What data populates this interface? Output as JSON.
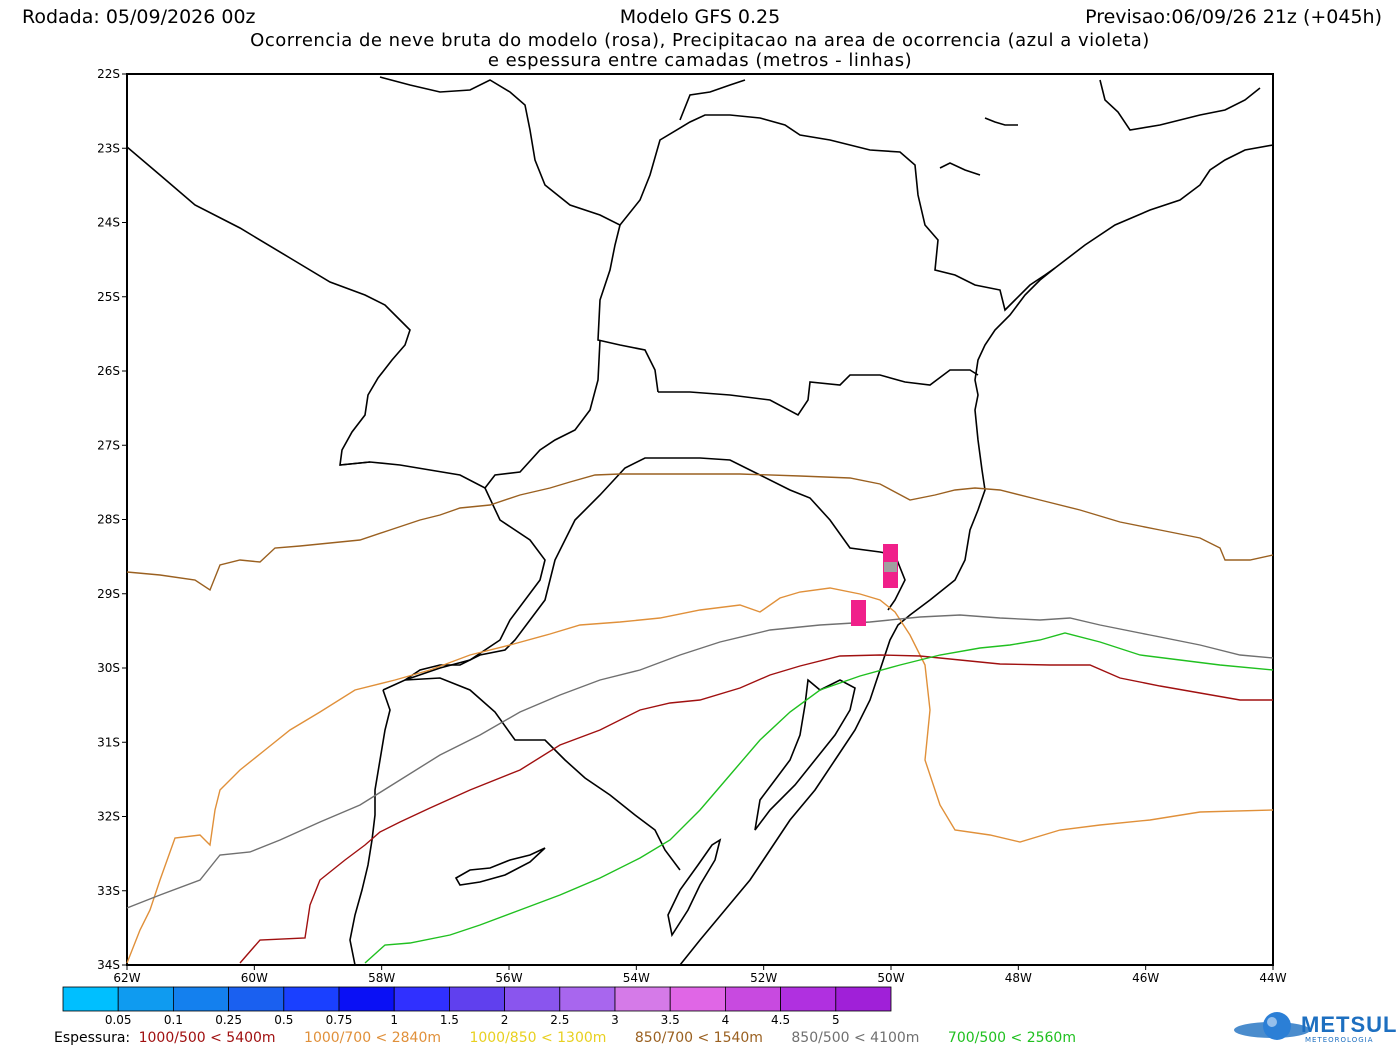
{
  "header": {
    "run": "Rodada: 05/09/2026 00z",
    "model": "Modelo GFS 0.25",
    "forecast": "Previsao:06/09/26 21z (+045h)",
    "subtitle_line1": "Ocorrencia de neve bruta do modelo (rosa), Precipitacao na area de ocorrencia (azul a violeta)",
    "subtitle_line2": "e espessura entre camadas (metros - linhas)"
  },
  "axes": {
    "lat_labels": [
      "22S",
      "23S",
      "24S",
      "25S",
      "26S",
      "27S",
      "28S",
      "29S",
      "30S",
      "31S",
      "32S",
      "33S",
      "34S"
    ],
    "lon_labels": [
      "62W",
      "60W",
      "58W",
      "56W",
      "54W",
      "52W",
      "50W",
      "48W",
      "46W",
      "44W"
    ]
  },
  "colorbar": {
    "colors": [
      "#00bfff",
      "#0f9bf0",
      "#1480ee",
      "#1a60f0",
      "#1a40ff",
      "#0a10f5",
      "#3030ff",
      "#6040ee",
      "#8a55ee",
      "#a866ee",
      "#d57ae8",
      "#e066e6",
      "#c84ae0",
      "#b030e0",
      "#a020d8"
    ],
    "labels": [
      "0.05",
      "0.1",
      "0.25",
      "0.5",
      "0.75",
      "1",
      "1.5",
      "2",
      "2.5",
      "3",
      "3.5",
      "4",
      "4.5",
      "5"
    ]
  },
  "legend": {
    "title": "Espessura:",
    "items": [
      {
        "label": "1000/500 < 5400m",
        "color": "#a01010"
      },
      {
        "label": "1000/700 < 2840m",
        "color": "#e0903a"
      },
      {
        "label": "1000/850 < 1300m",
        "color": "#e8d020"
      },
      {
        "label": "850/700 < 1540m",
        "color": "#9a6020"
      },
      {
        "label": "850/500 < 4100m",
        "color": "#707070"
      },
      {
        "label": "700/500 < 2560m",
        "color": "#20c020"
      }
    ]
  },
  "snow_color": "#f0208a",
  "logo": {
    "name": "METSUL",
    "sub": "METEOROLOGIA"
  }
}
